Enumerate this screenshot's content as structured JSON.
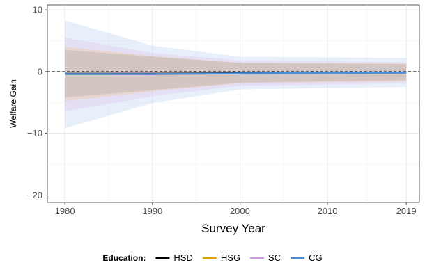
{
  "chart_data": {
    "type": "line",
    "title": "",
    "xlabel": "Survey Year",
    "ylabel": "Welfare Gain",
    "x_ticks": [
      1980,
      1990,
      2000,
      2010,
      2019
    ],
    "y_ticks": [
      10,
      0,
      -10,
      -20
    ],
    "y_tick_labels": [
      "10",
      "0",
      "−10",
      "−20"
    ],
    "xlim": [
      1978,
      2020.5
    ],
    "ylim": [
      -21.2,
      10.8
    ],
    "grid": true,
    "reference_line": {
      "y": 0,
      "style": "dashed"
    },
    "legend": {
      "title": "Education:",
      "position": "bottom"
    },
    "x": [
      1980,
      1990,
      2000,
      2019
    ],
    "series": [
      {
        "name": "HSD",
        "color": "#000000",
        "values": [
          -0.3,
          -0.3,
          -0.2,
          -0.1
        ],
        "lower": [
          -4.2,
          -3.0,
          -1.8,
          -1.4
        ],
        "upper": [
          3.5,
          2.4,
          1.4,
          1.2
        ],
        "band_color": "#a8a8a8"
      },
      {
        "name": "HSG",
        "color": "#E69F00",
        "values": [
          -0.4,
          -0.4,
          -0.3,
          -0.2
        ],
        "lower": [
          -4.8,
          -3.2,
          -1.9,
          -1.6
        ],
        "upper": [
          4.0,
          2.5,
          1.4,
          1.3
        ],
        "band_color": "#f2c28a"
      },
      {
        "name": "SC",
        "color": "#CC99DD",
        "values": [
          -0.4,
          -0.5,
          -0.3,
          -0.2
        ],
        "lower": [
          -6.5,
          -4.0,
          -2.3,
          -1.9
        ],
        "upper": [
          5.5,
          3.0,
          1.8,
          1.5
        ],
        "band_color": "#e2c4ec"
      },
      {
        "name": "CG",
        "color": "#4A90D9",
        "values": [
          -0.4,
          -0.4,
          -0.3,
          -0.2
        ],
        "lower": [
          -9.2,
          -5.1,
          -2.9,
          -2.5
        ],
        "upper": [
          8.3,
          4.2,
          2.4,
          2.2
        ],
        "band_color": "#b7d2f2"
      }
    ]
  }
}
